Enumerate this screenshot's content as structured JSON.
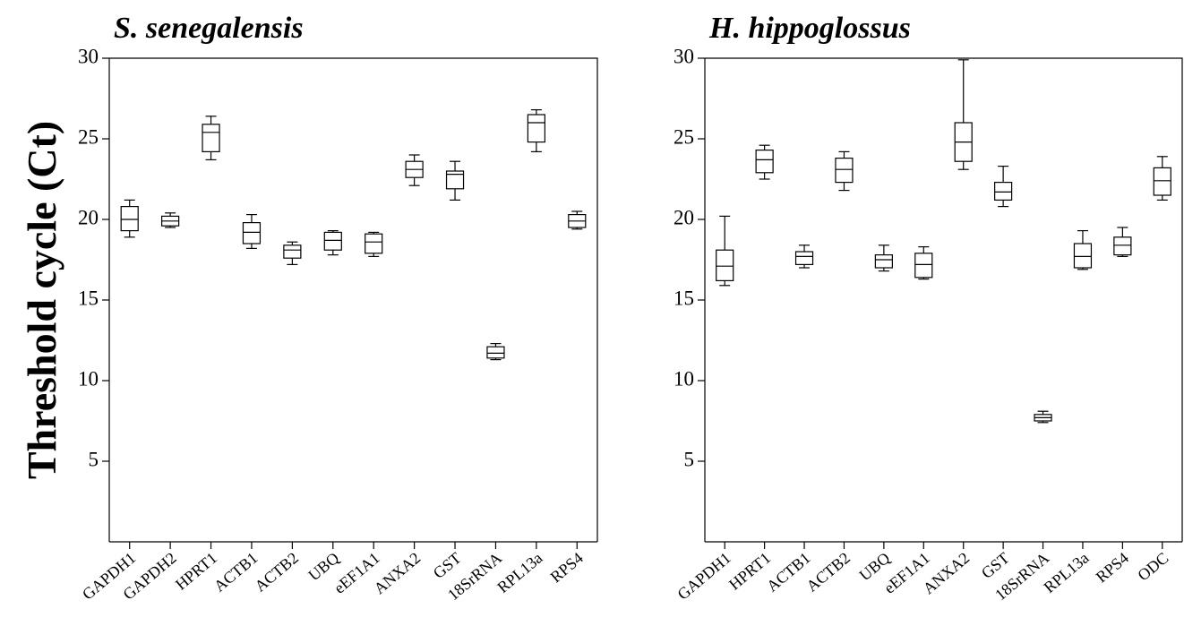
{
  "chart_data": [
    {
      "type": "box",
      "title": "S. senegalensis",
      "ylabel": "Threshold cycle (Ct)",
      "categories": [
        "GAPDH1",
        "GAPDH2",
        "HPRT1",
        "ACTB1",
        "ACTB2",
        "UBQ",
        "eEF1A1",
        "ANXA2",
        "GST",
        "18SrRNA",
        "RPL13a",
        "RPS4"
      ],
      "min": [
        18.9,
        19.5,
        23.7,
        18.2,
        17.2,
        17.8,
        17.7,
        22.1,
        21.2,
        11.3,
        24.2,
        19.4
      ],
      "q1": [
        19.3,
        19.6,
        24.2,
        18.5,
        17.6,
        18.1,
        17.9,
        22.6,
        21.9,
        11.4,
        24.8,
        19.5
      ],
      "median": [
        20.0,
        19.9,
        25.4,
        19.2,
        18.1,
        18.7,
        18.6,
        23.1,
        22.8,
        11.7,
        26.0,
        19.9
      ],
      "q3": [
        20.8,
        20.2,
        25.9,
        19.8,
        18.4,
        19.2,
        19.1,
        23.6,
        23.0,
        12.1,
        26.5,
        20.3
      ],
      "max": [
        21.2,
        20.4,
        26.4,
        20.3,
        18.6,
        19.3,
        19.2,
        24.0,
        23.6,
        12.3,
        26.8,
        20.5
      ],
      "ylim": [
        0,
        30
      ],
      "yticks": [
        5,
        10,
        15,
        20,
        25,
        30
      ]
    },
    {
      "type": "box",
      "title": "H. hippoglossus",
      "categories": [
        "GAPDH1",
        "HPRT1",
        "ACTB1",
        "ACTB2",
        "UBQ",
        "eEF1A1",
        "ANXA2",
        "GST",
        "18SrRNA",
        "RPL13a",
        "RPS4",
        "ODC"
      ],
      "min": [
        15.9,
        22.5,
        17.0,
        21.8,
        16.8,
        16.3,
        23.1,
        20.8,
        7.4,
        16.9,
        17.7,
        21.2
      ],
      "q1": [
        16.2,
        22.9,
        17.2,
        22.3,
        17.0,
        16.4,
        23.6,
        21.2,
        7.5,
        17.0,
        17.8,
        21.5
      ],
      "median": [
        17.1,
        23.7,
        17.7,
        23.1,
        17.5,
        17.2,
        24.8,
        21.7,
        7.7,
        17.7,
        18.4,
        22.4
      ],
      "q3": [
        18.1,
        24.3,
        18.0,
        23.8,
        17.8,
        17.9,
        26.0,
        22.3,
        7.9,
        18.5,
        18.9,
        23.2
      ],
      "max": [
        20.2,
        24.6,
        18.4,
        24.2,
        18.4,
        18.3,
        29.9,
        23.3,
        8.1,
        19.3,
        19.5,
        23.9
      ],
      "ylim": [
        0,
        30
      ],
      "yticks": [
        5,
        10,
        15,
        20,
        25,
        30
      ]
    }
  ]
}
